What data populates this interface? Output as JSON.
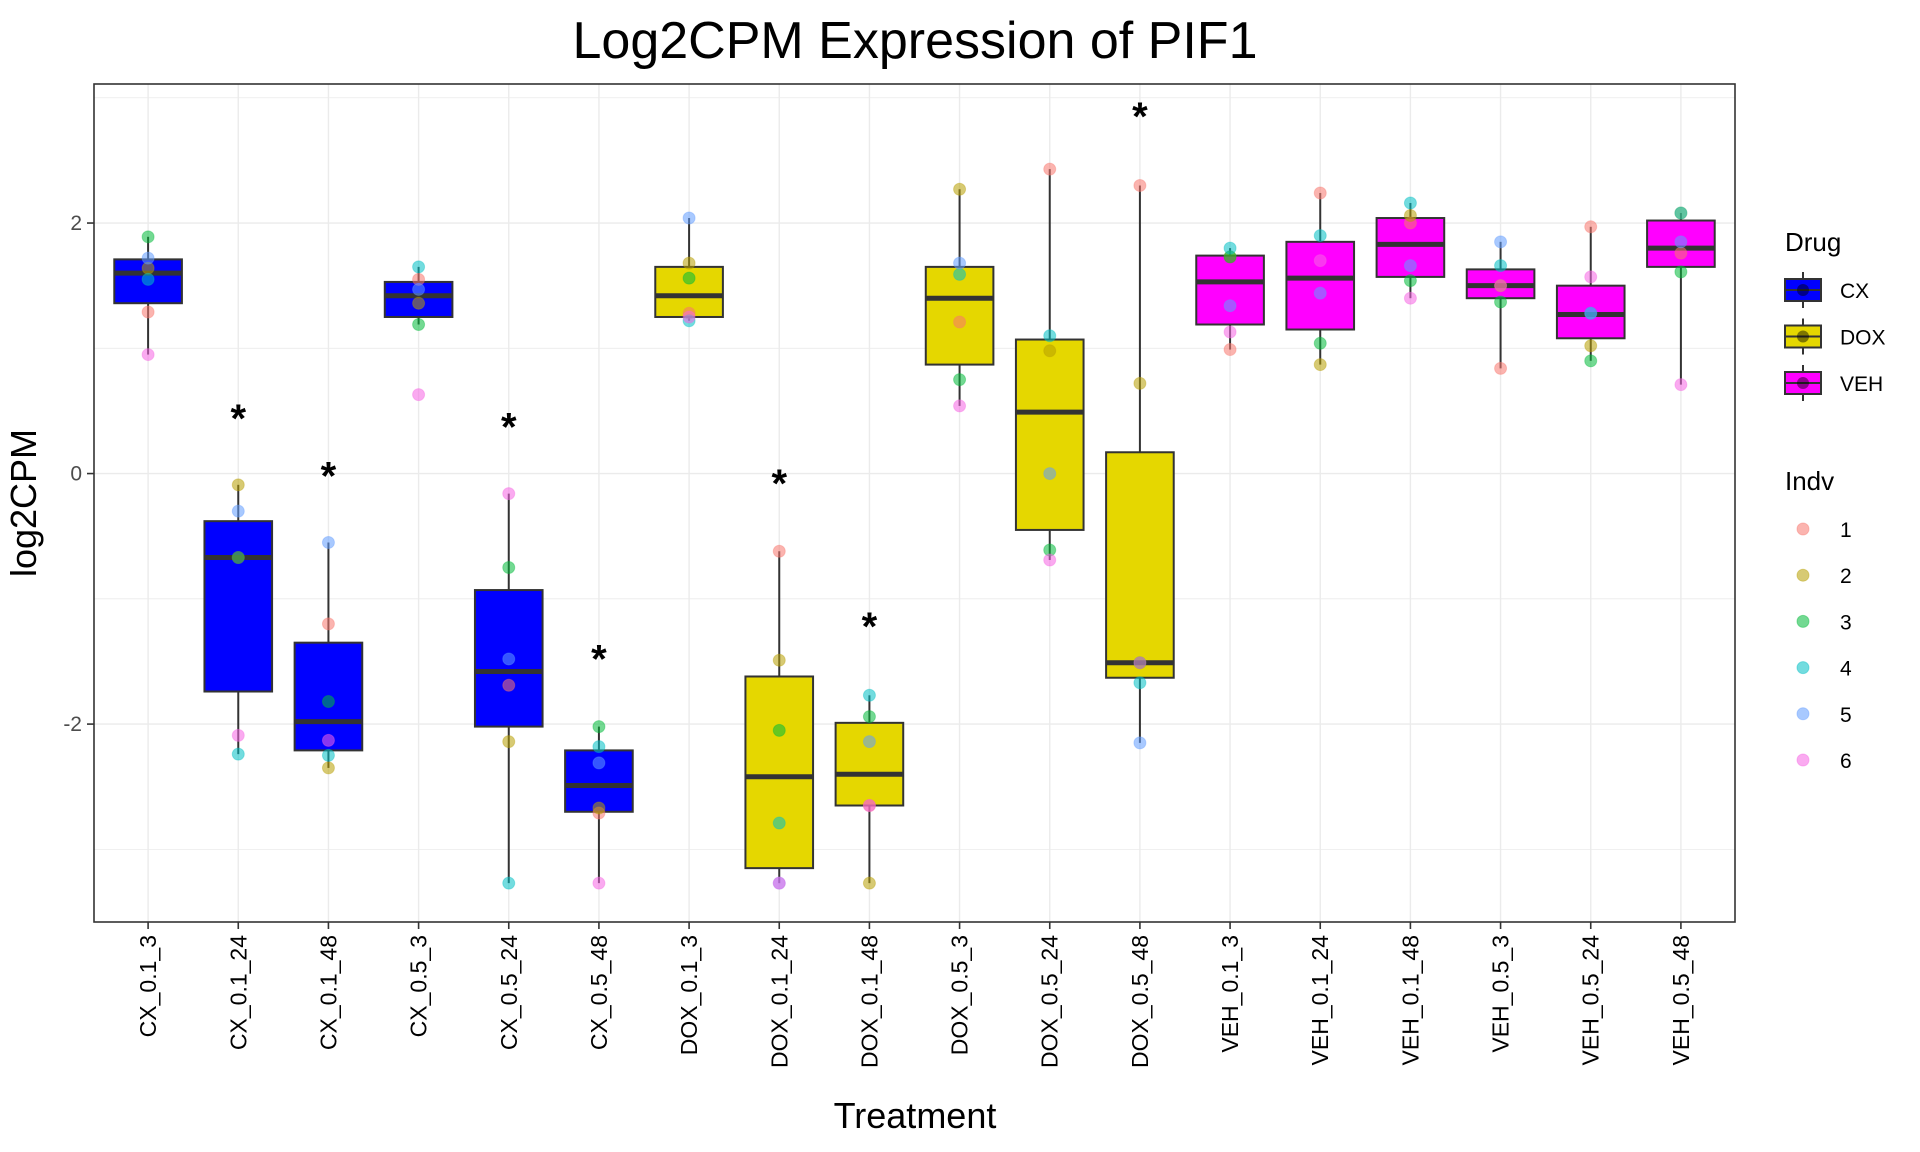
{
  "chart_data": {
    "type": "boxplot",
    "title": "Log2CPM Expression of PIF1",
    "xlabel": "Treatment",
    "ylabel": "log2CPM",
    "ylim": [
      -3.58,
      3.11
    ],
    "yticks": [
      -2,
      0,
      2
    ],
    "ytick_labels": [
      "-2",
      "0",
      "2"
    ],
    "grid": true,
    "categories": [
      "CX_0.1_3",
      "CX_0.1_24",
      "CX_0.1_48",
      "CX_0.5_3",
      "CX_0.5_24",
      "CX_0.5_48",
      "DOX_0.1_3",
      "DOX_0.1_24",
      "DOX_0.1_48",
      "DOX_0.5_3",
      "DOX_0.5_24",
      "DOX_0.5_48",
      "VEH_0.1_3",
      "VEH_0.1_24",
      "VEH_0.1_48",
      "VEH_0.5_3",
      "VEH_0.5_24",
      "VEH_0.5_48"
    ],
    "drug": [
      "CX",
      "CX",
      "CX",
      "CX",
      "CX",
      "CX",
      "DOX",
      "DOX",
      "DOX",
      "DOX",
      "DOX",
      "DOX",
      "VEH",
      "VEH",
      "VEH",
      "VEH",
      "VEH",
      "VEH"
    ],
    "boxes": [
      {
        "q1": 1.36,
        "median": 1.6,
        "q3": 1.71,
        "whisker_low": 0.95,
        "whisker_high": 1.89
      },
      {
        "q1": -1.74,
        "median": -0.67,
        "q3": -0.38,
        "whisker_low": -2.24,
        "whisker_high": -0.09
      },
      {
        "q1": -2.21,
        "median": -1.98,
        "q3": -1.35,
        "whisker_low": -2.35,
        "whisker_high": -0.55
      },
      {
        "q1": 1.25,
        "median": 1.42,
        "q3": 1.53,
        "whisker_low": 1.19,
        "whisker_high": 1.65
      },
      {
        "q1": -2.02,
        "median": -1.58,
        "q3": -0.93,
        "whisker_low": -3.27,
        "whisker_high": -0.16
      },
      {
        "q1": -2.7,
        "median": -2.49,
        "q3": -2.21,
        "whisker_low": -3.27,
        "whisker_high": -2.02
      },
      {
        "q1": 1.25,
        "median": 1.42,
        "q3": 1.65,
        "whisker_low": 1.22,
        "whisker_high": 2.04
      },
      {
        "q1": -3.15,
        "median": -2.42,
        "q3": -1.62,
        "whisker_low": -3.27,
        "whisker_high": -0.62
      },
      {
        "q1": -2.65,
        "median": -2.4,
        "q3": -1.99,
        "whisker_low": -3.27,
        "whisker_high": -1.77
      },
      {
        "q1": 0.87,
        "median": 1.4,
        "q3": 1.65,
        "whisker_low": 0.54,
        "whisker_high": 2.27
      },
      {
        "q1": -0.45,
        "median": 0.49,
        "q3": 1.07,
        "whisker_low": -0.69,
        "whisker_high": 2.43
      },
      {
        "q1": -1.63,
        "median": -1.51,
        "q3": 0.17,
        "whisker_low": -2.15,
        "whisker_high": 2.3
      },
      {
        "q1": 1.19,
        "median": 1.53,
        "q3": 1.74,
        "whisker_low": 0.99,
        "whisker_high": 1.8
      },
      {
        "q1": 1.15,
        "median": 1.56,
        "q3": 1.85,
        "whisker_low": 0.87,
        "whisker_high": 2.24
      },
      {
        "q1": 1.57,
        "median": 1.83,
        "q3": 2.04,
        "whisker_low": 1.4,
        "whisker_high": 2.16
      },
      {
        "q1": 1.4,
        "median": 1.5,
        "q3": 1.63,
        "whisker_low": 0.84,
        "whisker_high": 1.85
      },
      {
        "q1": 1.08,
        "median": 1.27,
        "q3": 1.5,
        "whisker_low": 0.9,
        "whisker_high": 1.97
      },
      {
        "q1": 1.65,
        "median": 1.8,
        "q3": 2.02,
        "whisker_low": 0.71,
        "whisker_high": 2.08
      }
    ],
    "points": [
      [
        1.29,
        1.64,
        1.89,
        1.55,
        1.72,
        0.95
      ],
      [
        -0.67,
        -0.09,
        -0.67,
        -2.24,
        -0.3,
        -2.09
      ],
      [
        -1.2,
        -2.35,
        -1.82,
        -2.25,
        -0.55,
        -2.13
      ],
      [
        1.55,
        1.36,
        1.19,
        1.65,
        1.47,
        0.63
      ],
      [
        -1.69,
        -2.14,
        -0.75,
        -3.27,
        -1.48,
        -0.16
      ],
      [
        -2.71,
        -2.67,
        -2.02,
        -2.18,
        -2.31,
        -3.27
      ],
      [
        1.28,
        1.68,
        1.56,
        1.22,
        2.04,
        1.25
      ],
      [
        -0.62,
        -1.49,
        -2.05,
        -2.79,
        -3.27,
        -3.27
      ],
      [
        -2.65,
        -3.27,
        -1.94,
        -1.77,
        -2.14,
        -2.65
      ],
      [
        1.21,
        2.27,
        0.75,
        1.59,
        1.68,
        0.54
      ],
      [
        2.43,
        0.98,
        -0.61,
        1.1,
        0.0,
        -0.69
      ],
      [
        2.3,
        0.72,
        -1.51,
        -1.67,
        -2.15,
        -1.51
      ],
      [
        0.99,
        1.73,
        1.73,
        1.8,
        1.34,
        1.13
      ],
      [
        2.24,
        0.87,
        1.04,
        1.9,
        1.44,
        1.7
      ],
      [
        2.0,
        2.06,
        1.54,
        2.16,
        1.66,
        1.4
      ],
      [
        0.84,
        1.5,
        1.37,
        1.66,
        1.85,
        1.5
      ],
      [
        1.97,
        1.02,
        0.9,
        1.28,
        1.28,
        1.57
      ],
      [
        1.76,
        2.08,
        1.61,
        2.08,
        1.85,
        0.71
      ]
    ],
    "significance": [
      {
        "category": "CX_0.1_24",
        "label": "*",
        "y": 0.46
      },
      {
        "category": "CX_0.1_48",
        "label": "*",
        "y": 0.0
      },
      {
        "category": "CX_0.5_24",
        "label": "*",
        "y": 0.39
      },
      {
        "category": "CX_0.5_48",
        "label": "*",
        "y": -1.46
      },
      {
        "category": "DOX_0.1_24",
        "label": "*",
        "y": -0.06
      },
      {
        "category": "DOX_0.1_48",
        "label": "*",
        "y": -1.2
      },
      {
        "category": "DOX_0.5_48",
        "label": "*",
        "y": 2.87
      }
    ],
    "legend_position": "right",
    "legends": [
      {
        "title": "Drug",
        "type": "fill",
        "entries": [
          {
            "label": "CX",
            "color": "#0000ff"
          },
          {
            "label": "DOX",
            "color": "#e5d700"
          },
          {
            "label": "VEH",
            "color": "#ff00ff"
          }
        ]
      },
      {
        "title": "Indv",
        "type": "point",
        "entries": [
          {
            "label": "1",
            "color": "#f8766d"
          },
          {
            "label": "2",
            "color": "#b79f00"
          },
          {
            "label": "3",
            "color": "#00ba38"
          },
          {
            "label": "4",
            "color": "#00bfc4"
          },
          {
            "label": "5",
            "color": "#619cff"
          },
          {
            "label": "6",
            "color": "#f564e3"
          }
        ]
      }
    ]
  }
}
